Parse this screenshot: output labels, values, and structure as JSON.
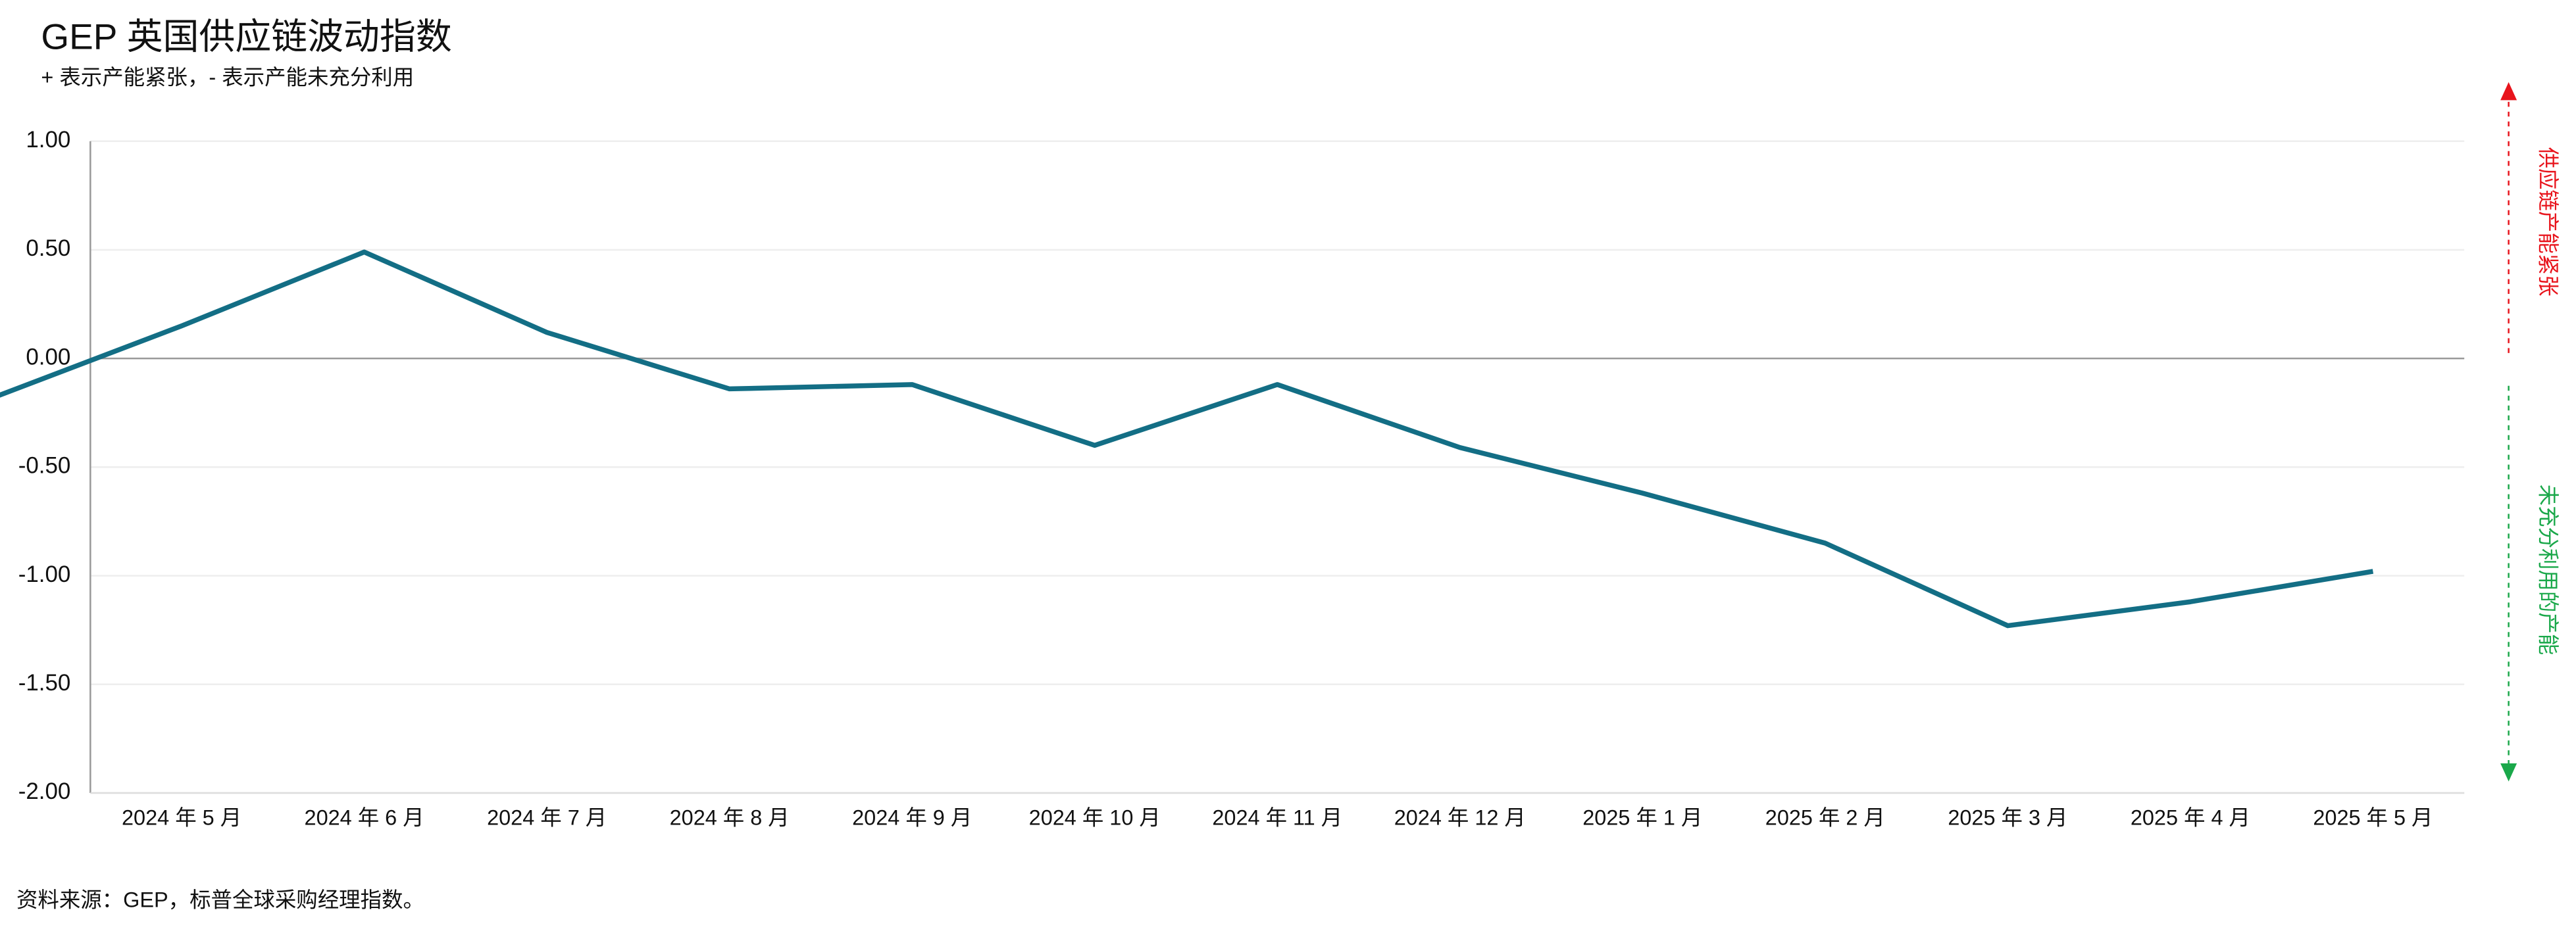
{
  "chart_data": {
    "type": "line",
    "title": "GEP 英国供应链波动指数",
    "subtitle": "+ 表示产能紧张，- 表示产能未充分利用",
    "source": "资料来源：GEP，标普全球采购经理指数。",
    "upper_annotation": "供应链产能紧张",
    "lower_annotation": "未充分利用的产能",
    "categories": [
      null,
      "2024 年 5 月",
      "2024 年 6 月",
      "2024 年 7 月",
      "2024 年 8 月",
      "2024 年 9 月",
      "2024 年 10 月",
      "2024 年 11 月",
      "2024 年 12 月",
      "2025 年 1 月",
      "2025 年 2 月",
      "2025 年 3 月",
      "2025 年 4 月",
      "2025 年 5 月"
    ],
    "series": [
      {
        "name": "GEP 英国供应链波动指数",
        "color": "#136e85",
        "values": [
          -0.17,
          0.15,
          0.49,
          0.12,
          -0.14,
          -0.12,
          -0.4,
          -0.12,
          -0.41,
          -0.62,
          -0.85,
          -1.23,
          -1.12,
          -0.98
        ]
      }
    ],
    "ylim": [
      -2.0,
      1.0
    ],
    "yticks": [
      {
        "value": -2.0,
        "label": "-2.00"
      },
      {
        "value": -1.5,
        "label": "-1.50"
      },
      {
        "value": -1.0,
        "label": "-1.00"
      },
      {
        "value": -0.5,
        "label": "-0.50"
      },
      {
        "value": 0,
        "label": "0.00"
      },
      {
        "value": 0.5,
        "label": "0.50"
      },
      {
        "value": 1.0,
        "label": "1.00"
      }
    ],
    "upper_color": "#e8141c",
    "lower_color": "#1aa84a",
    "grid": true
  }
}
